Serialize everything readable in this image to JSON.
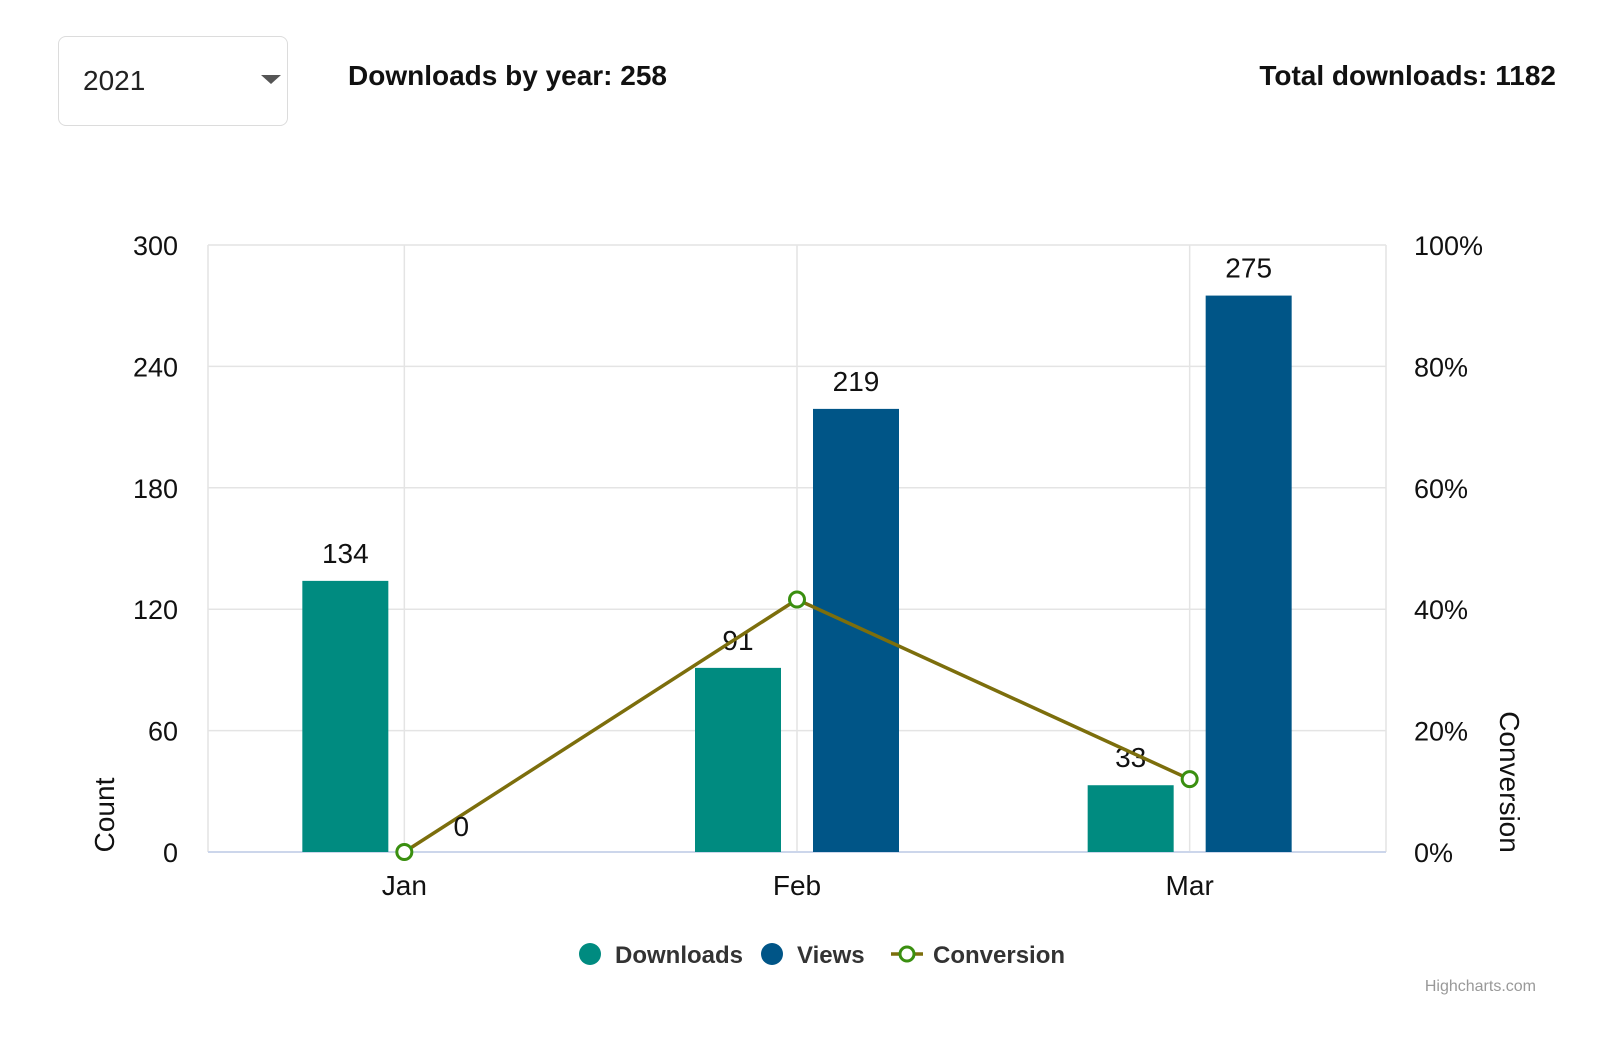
{
  "toolbar": {
    "year_value": "2021",
    "downloads_by_year": "Downloads by year: 258",
    "total_downloads": "Total downloads: 1182"
  },
  "credit": "Highcharts.com",
  "chart_data": {
    "type": "bar",
    "categories": [
      "Jan",
      "Feb",
      "Mar"
    ],
    "series": [
      {
        "name": "Downloads",
        "type": "bar",
        "axis": "left",
        "color": "#008b80",
        "values": [
          134,
          91,
          33
        ],
        "data_labels": [
          "134",
          "91",
          "33"
        ]
      },
      {
        "name": "Views",
        "type": "bar",
        "axis": "left",
        "color": "#005587",
        "values": [
          0,
          219,
          275
        ],
        "data_labels": [
          "0",
          "219",
          "275"
        ]
      },
      {
        "name": "Conversion",
        "type": "line",
        "axis": "right",
        "color": "#7c6e0c",
        "marker_color": "#3a8f10",
        "values": [
          0,
          41.6,
          12.0
        ]
      }
    ],
    "y_axis_left": {
      "label": "Count",
      "range": [
        0,
        300
      ],
      "ticks": [
        "0",
        "60",
        "120",
        "180",
        "240",
        "300"
      ]
    },
    "y_axis_right": {
      "label": "Conversion",
      "range": [
        0,
        100
      ],
      "ticks": [
        "0%",
        "20%",
        "40%",
        "60%",
        "80%",
        "100%"
      ]
    },
    "grid": true,
    "legend_position": "bottom-center"
  }
}
